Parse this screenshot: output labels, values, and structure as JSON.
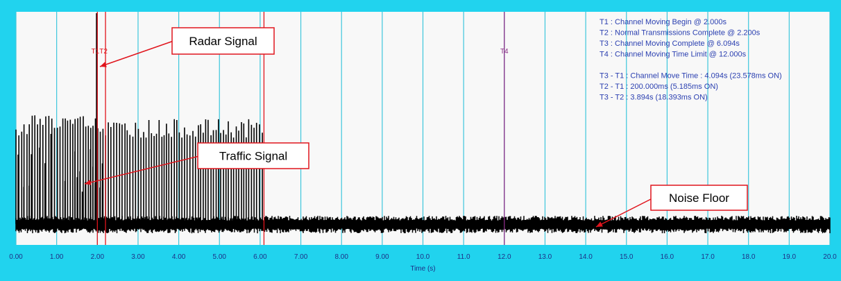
{
  "colors": {
    "frame": "#21d3ee",
    "plot_bg": "#f8f8f8",
    "grid": "#3cc6dc",
    "signal": "#000000",
    "marker_red": "#e0141c",
    "marker_purple": "#8a2d86",
    "info_text": "#2a3fb0",
    "tick_text": "#1e2f86",
    "callout_border": "#e0141c"
  },
  "chart_data": {
    "type": "line",
    "xlabel": "Time (s)",
    "xlim": [
      0,
      20
    ],
    "x_tick_labels": [
      "0.00",
      "1.00",
      "2.00",
      "3.00",
      "4.00",
      "5.00",
      "6.00",
      "7.00",
      "8.00",
      "9.00",
      "10.0",
      "11.0",
      "12.0",
      "13.0",
      "14.0",
      "15.0",
      "16.0",
      "17.0",
      "18.0",
      "19.0",
      "20.0"
    ],
    "x_ticks": [
      0,
      1,
      2,
      3,
      4,
      5,
      6,
      7,
      8,
      9,
      10,
      11,
      12,
      13,
      14,
      15,
      16,
      17,
      18,
      19,
      20
    ],
    "grid": "vertical",
    "markers": [
      {
        "id": "T1",
        "time": 2.0,
        "color": "red"
      },
      {
        "id": "T2",
        "time": 2.2,
        "color": "red"
      },
      {
        "id": "T3",
        "time": 6.094,
        "color": "red"
      },
      {
        "id": "T4",
        "time": 12.0,
        "color": "purple"
      }
    ],
    "marker_labels": {
      "t1t2": "T1T2",
      "t4": "T4"
    },
    "info_lines": [
      "T1 : Channel Moving Begin @ 2.000s",
      "T2 : Normal Transmissions Complete @ 2.200s",
      "T3 : Channel Moving Complete @ 6.094s",
      "T4 : Channel Moving Time Limit @ 12.000s",
      "",
      "T3 - T1 : Channel Move Time : 4.094s (23.578ms ON)",
      "T2 - T1 : 200.000ms (5.185ms ON)",
      "T3 - T2 : 3.894s (18.393ms ON)"
    ],
    "radar_pulse_time": 2.0,
    "traffic_region": [
      0.0,
      6.1
    ],
    "callouts": {
      "radar": "Radar Signal",
      "traffic": "Traffic Signal",
      "noise": "Noise Floor"
    }
  }
}
